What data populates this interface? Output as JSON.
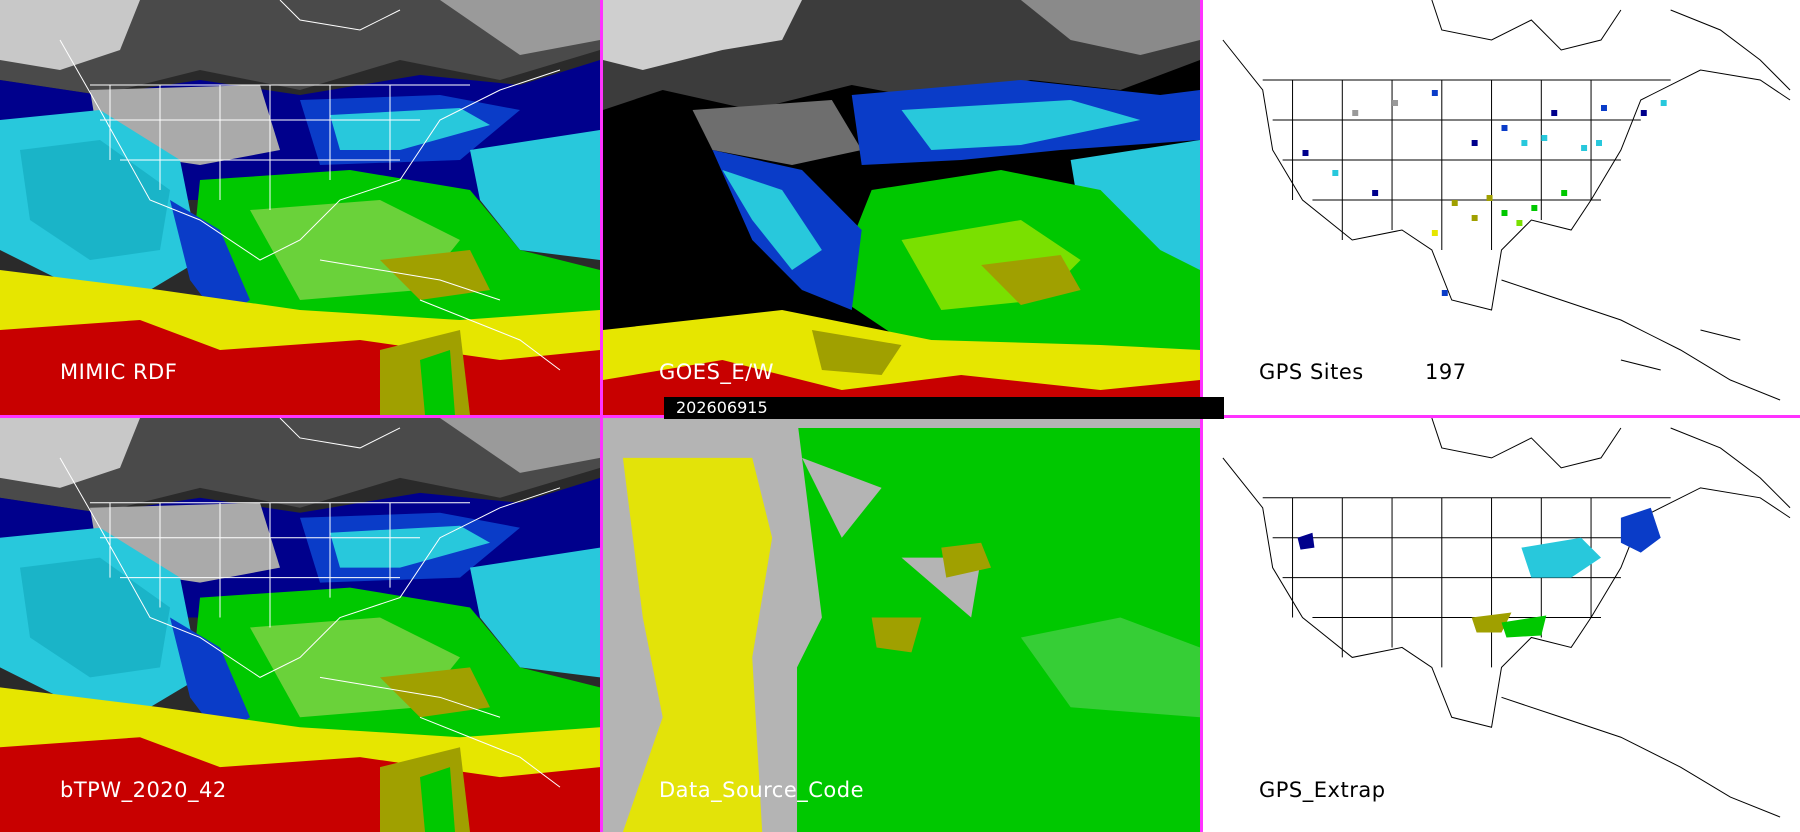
{
  "timestamp": "202606915",
  "panels": [
    {
      "id": "mimic",
      "label": "MIMIC RDF"
    },
    {
      "id": "goes",
      "label": "GOES_E/W"
    },
    {
      "id": "gps-sites",
      "label": "GPS Sites",
      "count": "197"
    },
    {
      "id": "btpw",
      "label": "bTPW_2020_42"
    },
    {
      "id": "source",
      "label": "Data_Source_Code"
    },
    {
      "id": "gps-extrap",
      "label": "GPS_Extrap"
    }
  ],
  "colors": {
    "separator": "#ff33ff",
    "palette": [
      "#3a3a3a",
      "#9a9a9a",
      "#00008c",
      "#0a3cc8",
      "#28c8dc",
      "#00c800",
      "#7ae000",
      "#a0a000",
      "#e6e600",
      "#c80000",
      "#ffffff"
    ]
  }
}
